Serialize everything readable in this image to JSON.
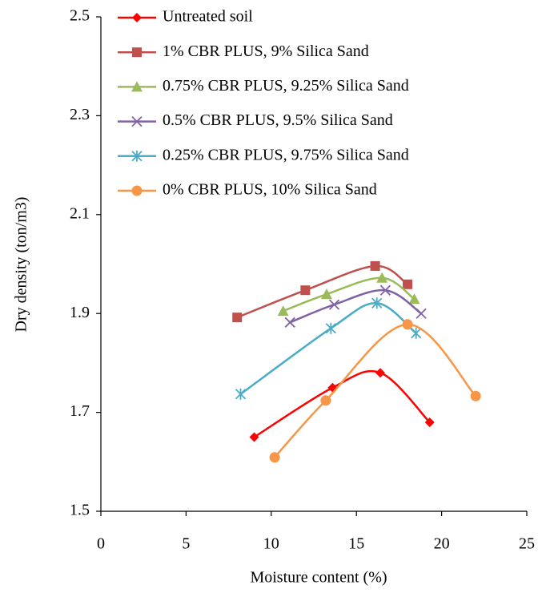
{
  "chart_data": {
    "type": "line",
    "x_label": "Moisture content (%)",
    "y_label": "Dry density (ton/m3)",
    "xlim": [
      0,
      25
    ],
    "xticks": [
      0,
      5,
      10,
      15,
      20,
      25
    ],
    "ylim": [
      1.5,
      2.5
    ],
    "yticks": [
      1.5,
      1.7,
      1.9,
      2.1,
      2.3,
      2.5
    ],
    "smooth": true,
    "legend": "upper left",
    "series": [
      {
        "name": "Untreated soil",
        "color": "#ff0000",
        "marker": "diamond",
        "x": [
          9,
          13.6,
          16.4,
          19.3
        ],
        "values": [
          1.65,
          1.75,
          1.78,
          1.68
        ]
      },
      {
        "name": "1% CBR PLUS, 9% Silica Sand",
        "color": "#c0504d",
        "marker": "square",
        "x": [
          8,
          12,
          16.1,
          18
        ],
        "values": [
          1.892,
          1.947,
          1.996,
          1.959
        ]
      },
      {
        "name": "0.75% CBR PLUS, 9.25% Silica Sand",
        "color": "#9bbb59",
        "marker": "triangle",
        "x": [
          10.7,
          13.25,
          16.5,
          18.4
        ],
        "values": [
          1.905,
          1.939,
          1.972,
          1.929
        ]
      },
      {
        "name": "0.5% CBR PLUS, 9.5% Silica Sand",
        "color": "#8064a2",
        "marker": "x",
        "x": [
          11.1,
          13.7,
          16.7,
          18.8
        ],
        "values": [
          1.882,
          1.918,
          1.947,
          1.9
        ]
      },
      {
        "name": "0.25% CBR PLUS, 9.75% Silica Sand",
        "color": "#4bacc6",
        "marker": "star",
        "x": [
          8.2,
          13.5,
          16.2,
          18.5
        ],
        "values": [
          1.737,
          1.87,
          1.921,
          1.86
        ]
      },
      {
        "name": "0% CBR PLUS, 10% Silica Sand",
        "color": "#f79646",
        "marker": "circle",
        "x": [
          10.2,
          13.2,
          18,
          22
        ],
        "values": [
          1.609,
          1.724,
          1.878,
          1.733
        ]
      }
    ]
  }
}
